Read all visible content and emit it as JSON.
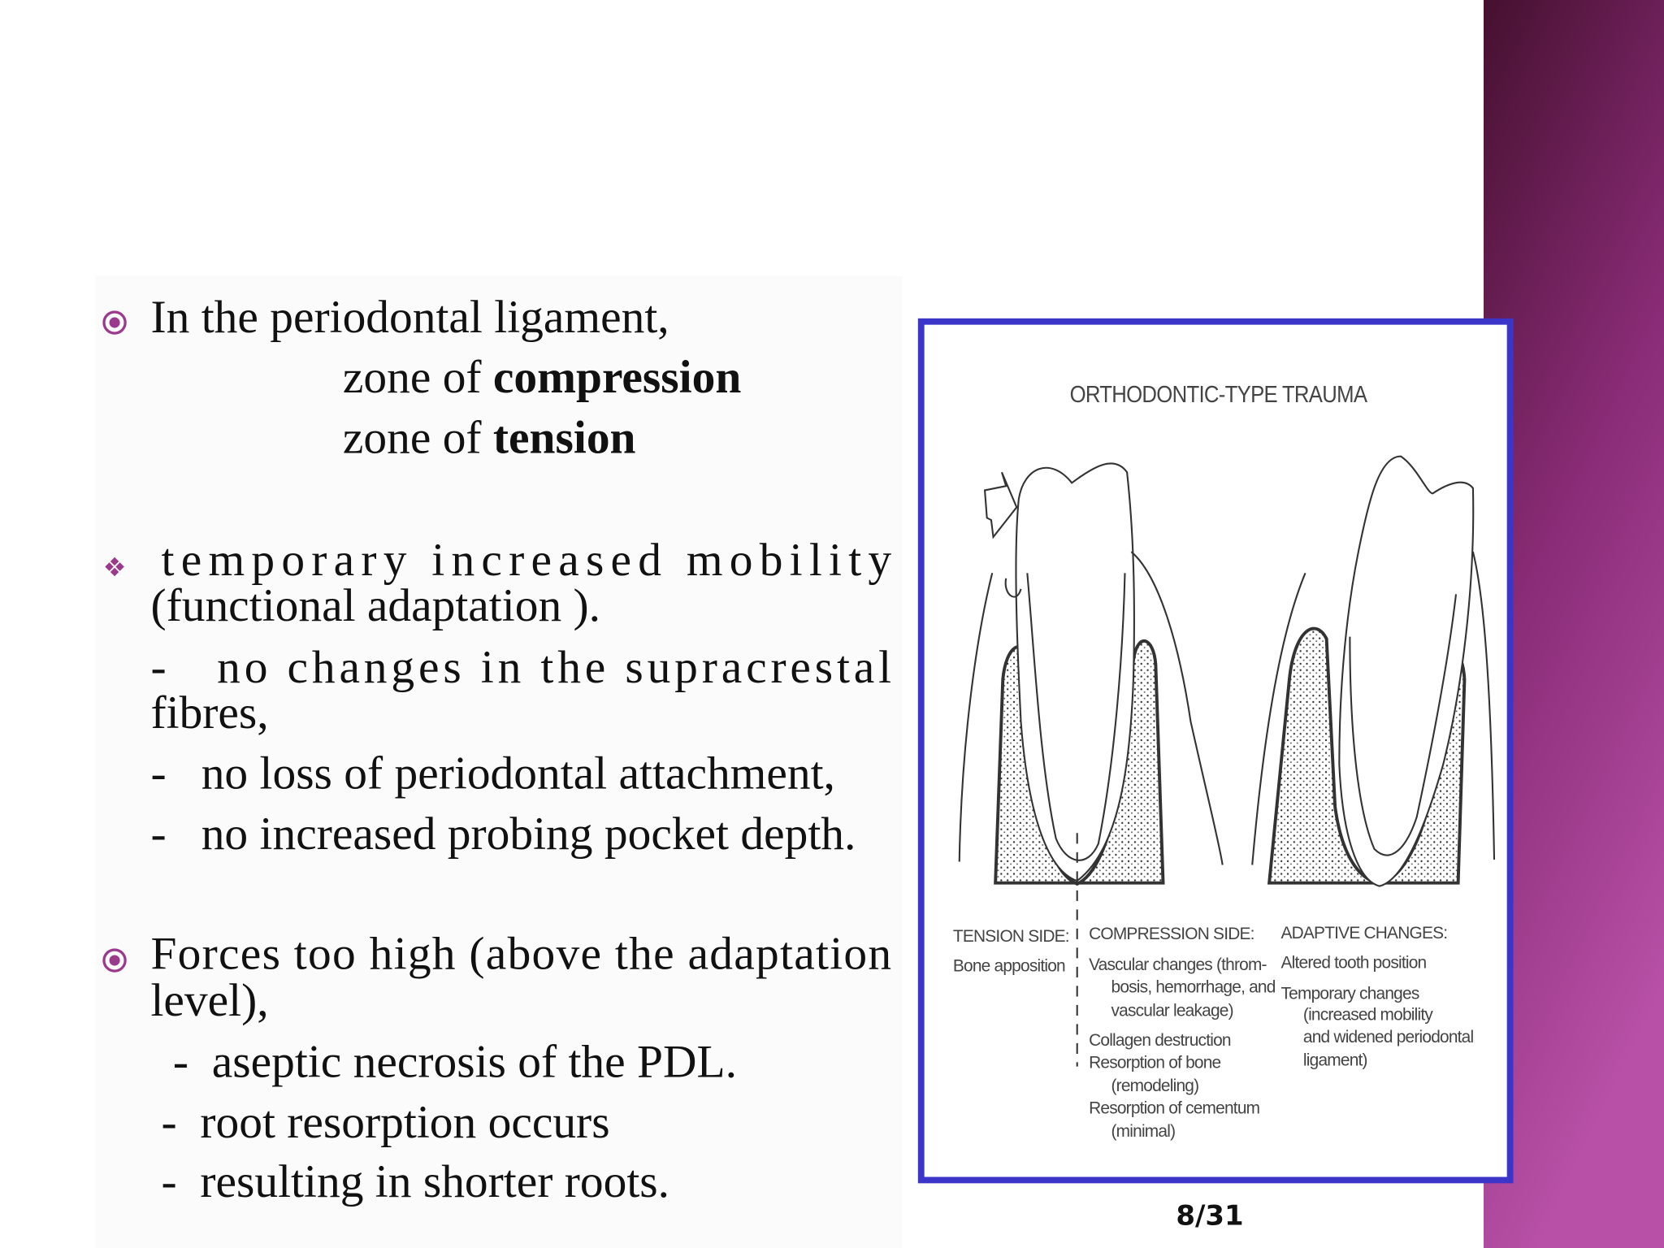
{
  "content": {
    "lines": [
      {
        "runs": [
          {
            "text": "In the periodontal ligament,"
          }
        ]
      },
      {
        "runs": [
          {
            "text": "zone of "
          },
          {
            "text": "compression",
            "bold": true
          }
        ]
      },
      {
        "runs": [
          {
            "text": "zone of "
          },
          {
            "text": "tension",
            "bold": true
          }
        ]
      },
      {
        "runs": [
          {
            "text": "temporary increased mobility"
          }
        ]
      },
      {
        "runs": [
          {
            "text": "(functional adaptation )."
          }
        ]
      },
      {
        "runs": [
          {
            "text": "-   no changes in the supracrestal"
          }
        ]
      },
      {
        "runs": [
          {
            "text": "fibres,"
          }
        ]
      },
      {
        "runs": [
          {
            "text": "-   no loss of periodontal attachment,"
          }
        ]
      },
      {
        "runs": [
          {
            "text": "-   no increased probing pocket depth."
          }
        ]
      },
      {
        "runs": [
          {
            "text": "Forces too high (above the adaptation"
          }
        ]
      },
      {
        "runs": [
          {
            "text": "level),"
          }
        ]
      },
      {
        "runs": [
          {
            "text": "-  aseptic necrosis of the PDL."
          }
        ]
      },
      {
        "runs": [
          {
            "text": "-  root resorption occurs"
          }
        ]
      },
      {
        "runs": [
          {
            "text": "-  resulting in shorter roots."
          }
        ]
      }
    ]
  },
  "figure": {
    "title": "ORTHODONTIC-TYPE TRAUMA",
    "columns": [
      {
        "lines": [
          "TENSION SIDE:",
          "Bone apposition"
        ]
      },
      {
        "lines": [
          "COMPRESSION SIDE:",
          "Vascular changes (throm-",
          "bosis, hemorrhage, and",
          "vascular leakage)",
          "Collagen destruction",
          "Resorption of bone",
          "(remodeling)",
          "Resorption of cementum",
          "(minimal)"
        ]
      },
      {
        "lines": [
          "ADAPTIVE CHANGES:",
          "Altered tooth position",
          "Temporary changes",
          "(increased mobility",
          "and widened periodontal",
          "ligament)"
        ]
      }
    ]
  },
  "page_number": "8/31"
}
